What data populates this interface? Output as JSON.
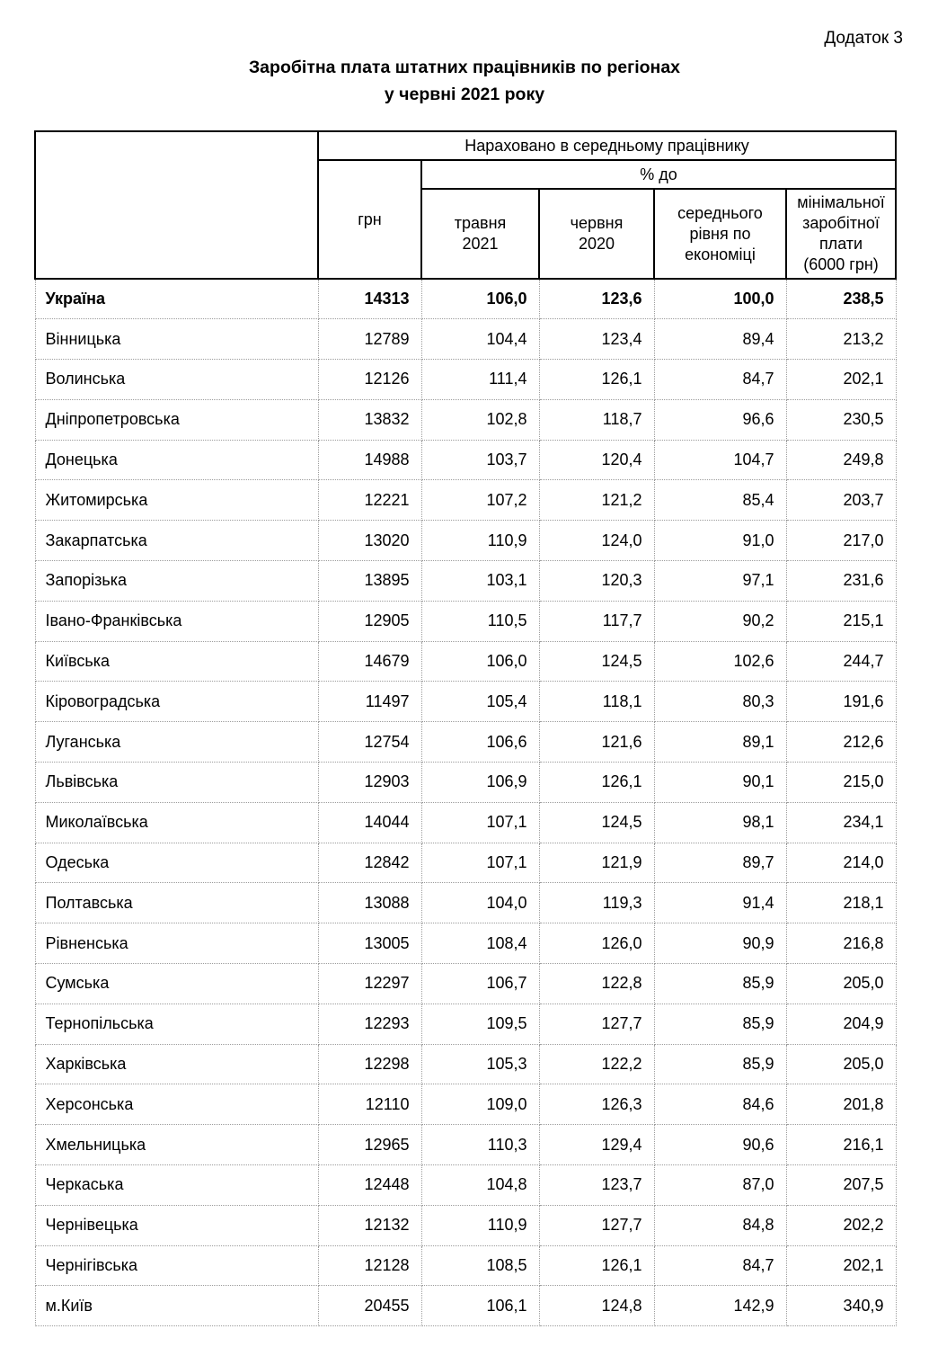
{
  "page": {
    "appendix_label": "Додаток 3",
    "title_line1": "Заробітна плата штатних працівників по регіонах",
    "title_line2": "у червні 2021 року"
  },
  "table": {
    "header": {
      "group_title": "Нараховано в середньому працівнику",
      "uah_label": "грн",
      "percent_group_label": "% до",
      "columns": [
        "травня\n2021",
        "червня\n2020",
        "середнього\nрівня по\nекономіці",
        "мінімальної\nзаробітної\nплати\n(6000 грн)"
      ]
    },
    "rows": [
      {
        "region": "Україна",
        "bold": true,
        "values": [
          "14313",
          "106,0",
          "123,6",
          "100,0",
          "238,5"
        ]
      },
      {
        "region": "Вінницька",
        "values": [
          "12789",
          "104,4",
          "123,4",
          "89,4",
          "213,2"
        ]
      },
      {
        "region": "Волинська",
        "values": [
          "12126",
          "111,4",
          "126,1",
          "84,7",
          "202,1"
        ]
      },
      {
        "region": "Дніпропетровська",
        "values": [
          "13832",
          "102,8",
          "118,7",
          "96,6",
          "230,5"
        ]
      },
      {
        "region": "Донецька",
        "values": [
          "14988",
          "103,7",
          "120,4",
          "104,7",
          "249,8"
        ]
      },
      {
        "region": "Житомирська",
        "values": [
          "12221",
          "107,2",
          "121,2",
          "85,4",
          "203,7"
        ]
      },
      {
        "region": "Закарпатська",
        "values": [
          "13020",
          "110,9",
          "124,0",
          "91,0",
          "217,0"
        ]
      },
      {
        "region": "Запорізька",
        "values": [
          "13895",
          "103,1",
          "120,3",
          "97,1",
          "231,6"
        ]
      },
      {
        "region": "Івано-Франківська",
        "values": [
          "12905",
          "110,5",
          "117,7",
          "90,2",
          "215,1"
        ]
      },
      {
        "region": "Київська",
        "values": [
          "14679",
          "106,0",
          "124,5",
          "102,6",
          "244,7"
        ]
      },
      {
        "region": "Кіровоградська",
        "values": [
          "11497",
          "105,4",
          "118,1",
          "80,3",
          "191,6"
        ]
      },
      {
        "region": "Луганська",
        "values": [
          "12754",
          "106,6",
          "121,6",
          "89,1",
          "212,6"
        ]
      },
      {
        "region": "Львівська",
        "values": [
          "12903",
          "106,9",
          "126,1",
          "90,1",
          "215,0"
        ]
      },
      {
        "region": "Миколаївська",
        "values": [
          "14044",
          "107,1",
          "124,5",
          "98,1",
          "234,1"
        ]
      },
      {
        "region": "Одеська",
        "values": [
          "12842",
          "107,1",
          "121,9",
          "89,7",
          "214,0"
        ]
      },
      {
        "region": "Полтавська",
        "values": [
          "13088",
          "104,0",
          "119,3",
          "91,4",
          "218,1"
        ]
      },
      {
        "region": "Рівненська",
        "values": [
          "13005",
          "108,4",
          "126,0",
          "90,9",
          "216,8"
        ]
      },
      {
        "region": "Сумська",
        "values": [
          "12297",
          "106,7",
          "122,8",
          "85,9",
          "205,0"
        ]
      },
      {
        "region": "Тернопільська",
        "values": [
          "12293",
          "109,5",
          "127,7",
          "85,9",
          "204,9"
        ]
      },
      {
        "region": "Харківська",
        "values": [
          "12298",
          "105,3",
          "122,2",
          "85,9",
          "205,0"
        ]
      },
      {
        "region": "Херсонська",
        "values": [
          "12110",
          "109,0",
          "126,3",
          "84,6",
          "201,8"
        ]
      },
      {
        "region": "Хмельницька",
        "values": [
          "12965",
          "110,3",
          "129,4",
          "90,6",
          "216,1"
        ]
      },
      {
        "region": "Черкаська",
        "values": [
          "12448",
          "104,8",
          "123,7",
          "87,0",
          "207,5"
        ]
      },
      {
        "region": "Чернівецька",
        "values": [
          "12132",
          "110,9",
          "127,7",
          "84,8",
          "202,2"
        ]
      },
      {
        "region": "Чернігівська",
        "values": [
          "12128",
          "108,5",
          "126,1",
          "84,7",
          "202,1"
        ]
      },
      {
        "region": "м.Київ",
        "values": [
          "20455",
          "106,1",
          "124,8",
          "142,9",
          "340,9"
        ]
      }
    ]
  }
}
